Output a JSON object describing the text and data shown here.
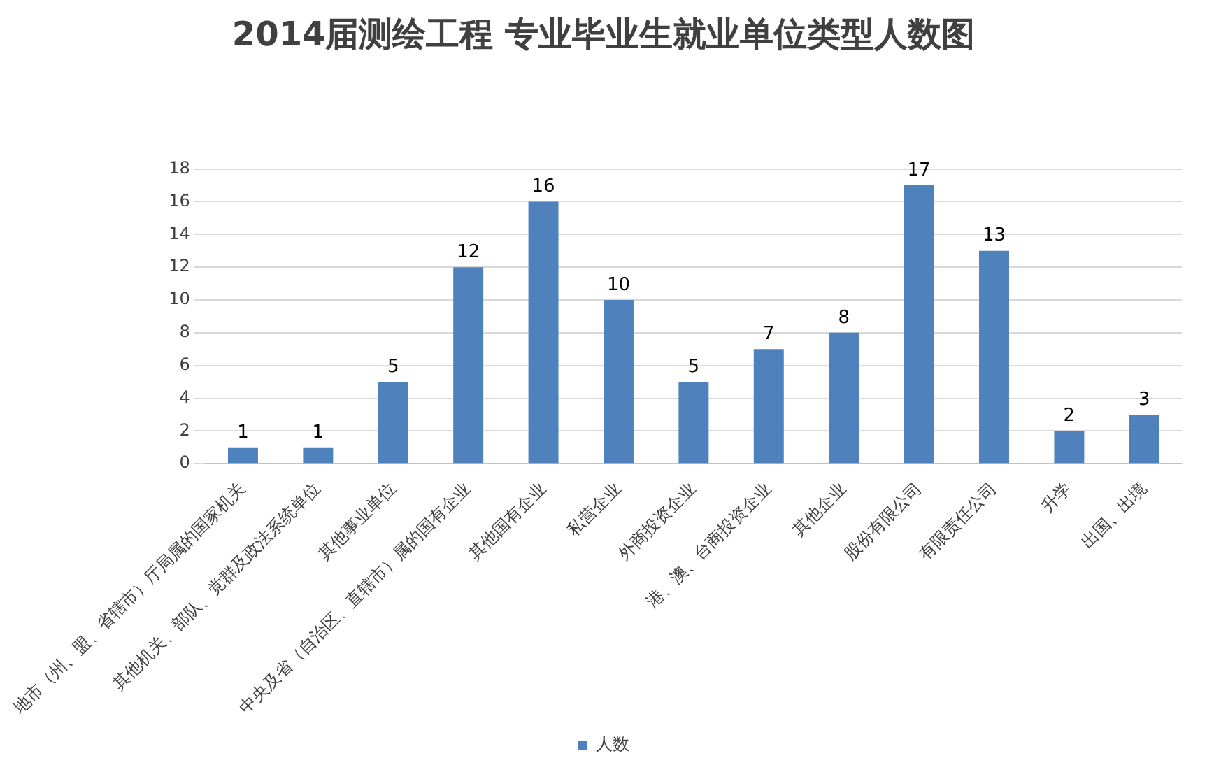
{
  "chart_data": {
    "type": "bar",
    "title": "2014届测绘工程 专业毕业生就业单位类型人数图",
    "categories": [
      "地市（州、盟、省辖市）厅局属的国家机关",
      "其他机关、部队、党群及政法系统单位",
      "其他事业单位",
      "中央及省（自治区、直辖市）属的国有企业",
      "其他国有企业",
      "私营企业",
      "外商投资企业",
      "港、澳、台商投资企业",
      "其他企业",
      "股份有限公司",
      "有限责任公司",
      "升学",
      "出国、出境"
    ],
    "series": [
      {
        "name": "人数",
        "color": "#4f81bd",
        "values": [
          1,
          1,
          5,
          12,
          16,
          10,
          5,
          7,
          8,
          17,
          13,
          2,
          3
        ]
      }
    ],
    "ylim": [
      0,
      18
    ],
    "yticks": [
      0,
      2,
      4,
      6,
      8,
      10,
      12,
      14,
      16,
      18
    ],
    "grid": "y",
    "legend": "bottom",
    "data_labels": true
  }
}
